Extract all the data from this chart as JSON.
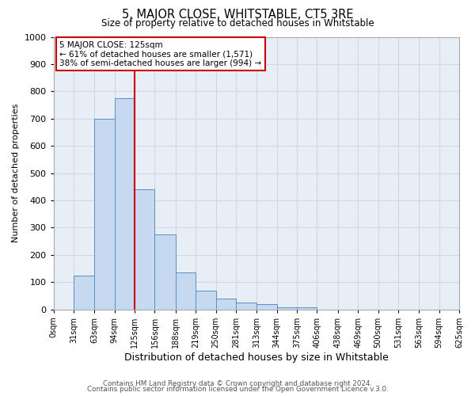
{
  "title": "5, MAJOR CLOSE, WHITSTABLE, CT5 3RE",
  "subtitle": "Size of property relative to detached houses in Whitstable",
  "xlabel": "Distribution of detached houses by size in Whitstable",
  "ylabel": "Number of detached properties",
  "footer_lines": [
    "Contains HM Land Registry data © Crown copyright and database right 2024.",
    "Contains public sector information licensed under the Open Government Licence v.3.0."
  ],
  "bin_edges": [
    0,
    31,
    63,
    94,
    125,
    156,
    188,
    219,
    250,
    281,
    313,
    344,
    375,
    406,
    438,
    469,
    500,
    531,
    563,
    594,
    625
  ],
  "bin_heights": [
    0,
    125,
    700,
    775,
    440,
    275,
    135,
    68,
    40,
    25,
    20,
    8,
    8,
    0,
    0,
    0,
    0,
    0,
    0,
    0
  ],
  "bar_facecolor": "#c6d9f1",
  "bar_edgecolor": "#5a8fc3",
  "vline_x": 125,
  "vline_color": "#cc0000",
  "annotation_line1": "5 MAJOR CLOSE: 125sqm",
  "annotation_line2": "← 61% of detached houses are smaller (1,571)",
  "annotation_line3": "38% of semi-detached houses are larger (994) →",
  "annotation_box_color": "#cc0000",
  "grid_color": "#d0d8e8",
  "background_color": "#e8eef5",
  "ylim": [
    0,
    1000
  ],
  "yticks": [
    0,
    100,
    200,
    300,
    400,
    500,
    600,
    700,
    800,
    900,
    1000
  ],
  "tick_labels": [
    "0sqm",
    "31sqm",
    "63sqm",
    "94sqm",
    "125sqm",
    "156sqm",
    "188sqm",
    "219sqm",
    "250sqm",
    "281sqm",
    "313sqm",
    "344sqm",
    "375sqm",
    "406sqm",
    "438sqm",
    "469sqm",
    "500sqm",
    "531sqm",
    "563sqm",
    "594sqm",
    "625sqm"
  ]
}
